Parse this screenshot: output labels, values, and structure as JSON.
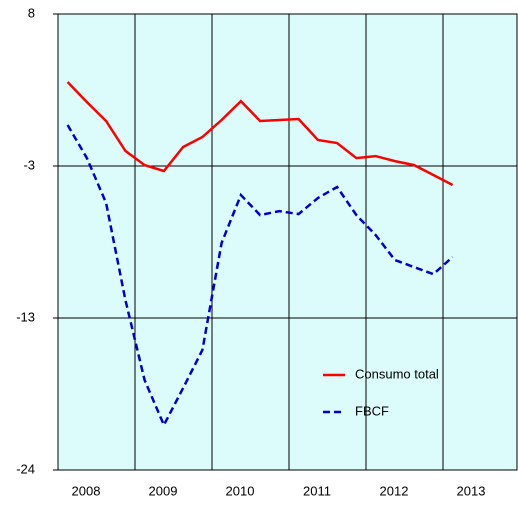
{
  "chart_data": {
    "type": "line",
    "categories": [
      "2008",
      null,
      null,
      null,
      "2009",
      null,
      null,
      null,
      "2010",
      null,
      null,
      null,
      "2011",
      null,
      null,
      null,
      "2012",
      null,
      null,
      null,
      "2013"
    ],
    "series": [
      {
        "name": "Consumo total",
        "color": "#ff0000",
        "dash": "solid",
        "values": [
          3.23,
          1.82,
          0.49,
          -1.61,
          -2.6,
          -3.02,
          -1.33,
          -0.63,
          0.56,
          1.89,
          0.49,
          0.56,
          0.63,
          -0.84,
          -1.05,
          -2.11,
          -1.97,
          -2.32,
          -2.6,
          -3.3,
          -4.0
        ]
      },
      {
        "name": "FBCF",
        "color": "#0000cc",
        "dash": "dashed",
        "values": [
          0.21,
          -2.11,
          -5.26,
          -12.07,
          -17.69,
          -20.84,
          -18.25,
          -15.58,
          -8.07,
          -4.7,
          -6.11,
          -5.83,
          -6.04,
          -4.91,
          -4.14,
          -6.11,
          -7.51,
          -9.26,
          -9.76,
          -10.25,
          -9.05
        ]
      }
    ],
    "ylim": [
      -24,
      8
    ],
    "yticks": [
      -24,
      {
        "value": -13.333,
        "label": "-13"
      },
      {
        "value": -2.667,
        "label": "-3"
      },
      8
    ],
    "grid": true,
    "legend": "lower-right"
  }
}
